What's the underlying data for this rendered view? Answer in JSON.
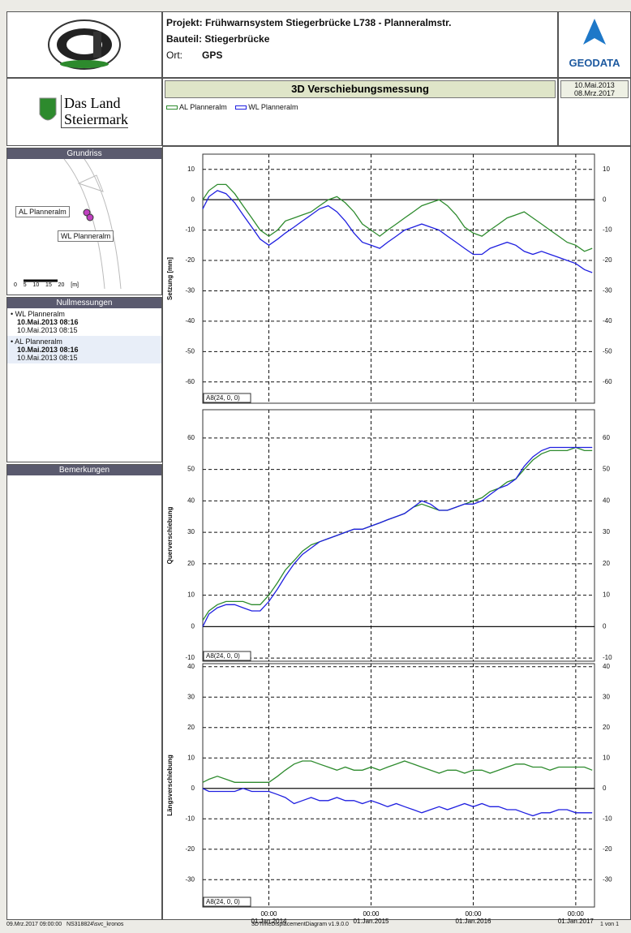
{
  "header": {
    "project_label": "Projekt:",
    "project": "Frühwarnsystem Stiegerbrücke L738 - Planneralmstr.",
    "component_label": "Bauteil:",
    "component": "Stiegerbrücke",
    "location_label": "Ort:",
    "location": "GPS",
    "company": "GEODATA",
    "state_logo_1": "Das Land",
    "state_logo_2": "Steiermark",
    "title": "3D Verschiebungsmessung",
    "date_from": "10.Mai.2013",
    "date_to": "08.Mrz.2017"
  },
  "sidebar": {
    "plan_title": "Grundriss",
    "plan_labels": [
      "AL Planneralm",
      "WL Planneralm"
    ],
    "scale_labels": [
      "0",
      "5",
      "10",
      "15",
      "20",
      "[m]"
    ],
    "zero_title": "Nullmessungen",
    "zero_entries": [
      {
        "name": "WL Planneralm",
        "date1": "10.Mai.2013 08:16",
        "date2": "10.Mai.2013 08:15"
      },
      {
        "name": "AL Planneralm",
        "date1": "10.Mai.2013 08:16",
        "date2": "10.Mai.2013 08:15"
      }
    ],
    "remarks_title": "Bemerkungen"
  },
  "footer": {
    "left": "09.Mrz.2017 09:00:00   NS318824\\svc_kronos",
    "center": "3DTimeDisplacementDiagram v1.9.0.0",
    "right": "1 von 1"
  },
  "chart_data": [
    {
      "type": "line",
      "y_label": "Setzung [mm]",
      "annotation": "A8(24, 0, 0)",
      "grid": true,
      "x": [
        "2013-05-10",
        "2013-06-01",
        "2013-07-01",
        "2013-08-01",
        "2013-09-01",
        "2013-10-01",
        "2013-11-01",
        "2013-12-01",
        "2014-01-01",
        "2014-02-01",
        "2014-03-01",
        "2014-04-01",
        "2014-05-01",
        "2014-06-01",
        "2014-07-01",
        "2014-08-01",
        "2014-09-01",
        "2014-10-01",
        "2014-11-01",
        "2014-12-01",
        "2015-01-01",
        "2015-02-01",
        "2015-03-01",
        "2015-04-01",
        "2015-05-01",
        "2015-06-01",
        "2015-07-01",
        "2015-08-01",
        "2015-09-01",
        "2015-10-01",
        "2015-11-01",
        "2015-12-01",
        "2016-01-01",
        "2016-02-01",
        "2016-03-01",
        "2016-04-01",
        "2016-05-01",
        "2016-06-01",
        "2016-07-01",
        "2016-08-01",
        "2016-09-01",
        "2016-10-01",
        "2016-11-01",
        "2016-12-01",
        "2017-01-01",
        "2017-02-01",
        "2017-03-01"
      ],
      "xlim": [
        "2013-05-10",
        "2017-03-09"
      ],
      "xticks": [
        "2014-01-01",
        "2015-01-01",
        "2016-01-01",
        "2017-01-01"
      ],
      "ylim": [
        -67,
        15
      ],
      "yticks": [
        -60,
        -50,
        -40,
        -30,
        -20,
        -10,
        0,
        10
      ],
      "series": [
        {
          "name": "AL Planneralm",
          "color": "#2e8b2e",
          "values": [
            0,
            3,
            5,
            5,
            2,
            -2,
            -6,
            -10,
            -12,
            -10,
            -7,
            -6,
            -5,
            -4,
            -2,
            0,
            1,
            -1,
            -4,
            -8,
            -10,
            -12,
            -10,
            -8,
            -6,
            -4,
            -2,
            -1,
            0,
            -2,
            -5,
            -9,
            -11,
            -12,
            -10,
            -8,
            -6,
            -5,
            -4,
            -6,
            -8,
            -10,
            -12,
            -14,
            -15,
            -17,
            -16
          ]
        },
        {
          "name": "WL Planneralm",
          "color": "#1f1fe0",
          "values": [
            -3,
            1,
            3,
            2,
            -1,
            -5,
            -9,
            -13,
            -15,
            -13,
            -11,
            -9,
            -7,
            -5,
            -3,
            -2,
            -4,
            -7,
            -11,
            -14,
            -15,
            -16,
            -14,
            -12,
            -10,
            -9,
            -8,
            -9,
            -10,
            -12,
            -14,
            -16,
            -18,
            -18,
            -16,
            -15,
            -14,
            -15,
            -17,
            -18,
            -17,
            -18,
            -19,
            -20,
            -21,
            -23,
            -24
          ]
        }
      ]
    },
    {
      "type": "line",
      "y_label": "Querverschiebung",
      "annotation": "A8(24, 0, 0)",
      "grid": true,
      "x": [
        "2013-05-10",
        "2013-06-01",
        "2013-07-01",
        "2013-08-01",
        "2013-09-01",
        "2013-10-01",
        "2013-11-01",
        "2013-12-01",
        "2014-01-01",
        "2014-02-01",
        "2014-03-01",
        "2014-04-01",
        "2014-05-01",
        "2014-06-01",
        "2014-07-01",
        "2014-08-01",
        "2014-09-01",
        "2014-10-01",
        "2014-11-01",
        "2014-12-01",
        "2015-01-01",
        "2015-02-01",
        "2015-03-01",
        "2015-04-01",
        "2015-05-01",
        "2015-06-01",
        "2015-07-01",
        "2015-08-01",
        "2015-09-01",
        "2015-10-01",
        "2015-11-01",
        "2015-12-01",
        "2016-01-01",
        "2016-02-01",
        "2016-03-01",
        "2016-04-01",
        "2016-05-01",
        "2016-06-01",
        "2016-07-01",
        "2016-08-01",
        "2016-09-01",
        "2016-10-01",
        "2016-11-01",
        "2016-12-01",
        "2017-01-01",
        "2017-02-01",
        "2017-03-01"
      ],
      "xlim": [
        "2013-05-10",
        "2017-03-09"
      ],
      "xticks": [
        "2014-01-01",
        "2015-01-01",
        "2016-01-01",
        "2017-01-01"
      ],
      "ylim": [
        -11,
        69
      ],
      "yticks": [
        -10,
        0,
        10,
        20,
        30,
        40,
        50,
        60
      ],
      "series": [
        {
          "color": "#2e8b2e",
          "values": [
            2,
            5,
            7,
            8,
            8,
            8,
            7,
            7,
            10,
            14,
            18,
            21,
            24,
            26,
            27,
            28,
            29,
            30,
            31,
            31,
            32,
            33,
            34,
            35,
            36,
            38,
            39,
            38,
            37,
            37,
            38,
            39,
            40,
            41,
            43,
            44,
            46,
            47,
            50,
            53,
            55,
            56,
            56,
            56,
            57,
            56,
            56
          ]
        },
        {
          "color": "#1f1fe0",
          "values": [
            0,
            4,
            6,
            7,
            7,
            6,
            5,
            5,
            8,
            12,
            16,
            20,
            23,
            25,
            27,
            28,
            29,
            30,
            31,
            31,
            32,
            33,
            34,
            35,
            36,
            38,
            40,
            39,
            37,
            37,
            38,
            39,
            39,
            40,
            42,
            44,
            45,
            47,
            51,
            54,
            56,
            57,
            57,
            57,
            57,
            57,
            57
          ]
        }
      ]
    },
    {
      "type": "line",
      "y_label": "Längsverschiebung",
      "annotation": "A8(24, 0, 0)",
      "grid": true,
      "x": [
        "2013-05-10",
        "2013-06-01",
        "2013-07-01",
        "2013-08-01",
        "2013-09-01",
        "2013-10-01",
        "2013-11-01",
        "2013-12-01",
        "2014-01-01",
        "2014-02-01",
        "2014-03-01",
        "2014-04-01",
        "2014-05-01",
        "2014-06-01",
        "2014-07-01",
        "2014-08-01",
        "2014-09-01",
        "2014-10-01",
        "2014-11-01",
        "2014-12-01",
        "2015-01-01",
        "2015-02-01",
        "2015-03-01",
        "2015-04-01",
        "2015-05-01",
        "2015-06-01",
        "2015-07-01",
        "2015-08-01",
        "2015-09-01",
        "2015-10-01",
        "2015-11-01",
        "2015-12-01",
        "2016-01-01",
        "2016-02-01",
        "2016-03-01",
        "2016-04-01",
        "2016-05-01",
        "2016-06-01",
        "2016-07-01",
        "2016-08-01",
        "2016-09-01",
        "2016-10-01",
        "2016-11-01",
        "2016-12-01",
        "2017-01-01",
        "2017-02-01",
        "2017-03-01"
      ],
      "xlim": [
        "2013-05-10",
        "2017-03-09"
      ],
      "xticks": [
        {
          "value": "2014-01-01",
          "label": "00:00\n01.Jan.2014"
        },
        {
          "value": "2015-01-01",
          "label": "00:00\n01.Jan.2015"
        },
        {
          "value": "2016-01-01",
          "label": "00:00\n01.Jan.2016"
        },
        {
          "value": "2017-01-01",
          "label": "00:00\n01.Jan.2017"
        }
      ],
      "ylim": [
        -39,
        41
      ],
      "yticks": [
        -30,
        -20,
        -10,
        0,
        10,
        20,
        30,
        40
      ],
      "series": [
        {
          "color": "#2e8b2e",
          "values": [
            2,
            3,
            4,
            3,
            2,
            2,
            2,
            2,
            2,
            4,
            6,
            8,
            9,
            9,
            8,
            7,
            6,
            7,
            6,
            6,
            7,
            6,
            7,
            8,
            9,
            8,
            7,
            6,
            5,
            6,
            6,
            5,
            6,
            6,
            5,
            6,
            7,
            8,
            8,
            7,
            7,
            6,
            7,
            7,
            7,
            7,
            6
          ]
        },
        {
          "color": "#1f1fe0",
          "values": [
            0,
            -1,
            -1,
            -1,
            -1,
            0,
            -1,
            -1,
            -1,
            -2,
            -3,
            -5,
            -4,
            -3,
            -4,
            -4,
            -3,
            -4,
            -4,
            -5,
            -4,
            -5,
            -6,
            -5,
            -6,
            -7,
            -8,
            -7,
            -6,
            -7,
            -6,
            -5,
            -6,
            -5,
            -6,
            -6,
            -7,
            -7,
            -8,
            -9,
            -8,
            -8,
            -7,
            -7,
            -8,
            -8,
            -8
          ]
        }
      ]
    }
  ]
}
